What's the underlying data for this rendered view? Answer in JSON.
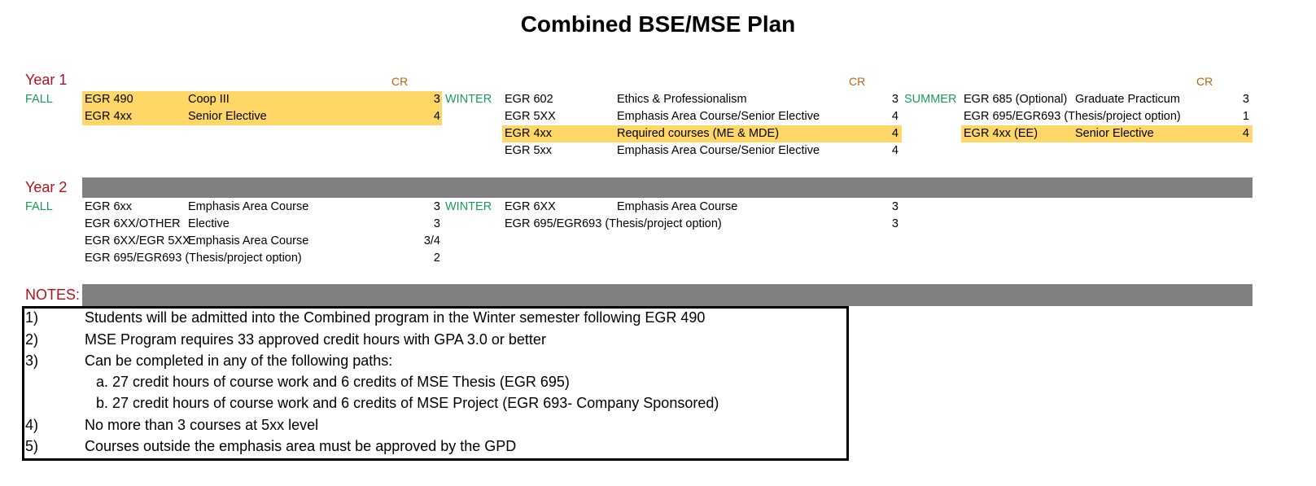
{
  "title": "Combined BSE/MSE Plan",
  "cr_header": "CR",
  "colors": {
    "highlight": "#ffd766",
    "bar": "#808080",
    "year": "#b0121b",
    "semester": "#1a9a5a",
    "cr": "#b8650f"
  },
  "year1": {
    "label": "Year 1",
    "fall": {
      "label": "FALL",
      "courses": [
        {
          "code": "EGR 490",
          "title": "Coop III",
          "cr": "3",
          "highlight": true
        },
        {
          "code": "EGR 4xx",
          "title": "Senior Elective",
          "cr": "4",
          "highlight": true
        }
      ]
    },
    "winter": {
      "label": "WINTER",
      "courses": [
        {
          "code": "EGR 602",
          "title": "Ethics & Professionalism",
          "cr": "3",
          "highlight": false
        },
        {
          "code": "EGR 5XX",
          "title": "Emphasis Area Course/Senior Elective",
          "cr": "4",
          "highlight": false
        },
        {
          "code": "EGR 4xx",
          "title": "Required courses (ME & MDE)",
          "cr": "4",
          "highlight": true
        },
        {
          "code": "EGR 5xx",
          "title": "Emphasis Area Course/Senior Elective",
          "cr": "4",
          "highlight": false
        }
      ]
    },
    "summer": {
      "label": "SUMMER",
      "courses": [
        {
          "code": "EGR 685 (Optional)",
          "title": "Graduate Practicum",
          "cr": "3",
          "highlight": false
        },
        {
          "code": "EGR 695/EGR693 (Thesis/project option)",
          "title": "",
          "cr": "1",
          "highlight": false
        },
        {
          "code": "EGR 4xx (EE)",
          "title": "Senior Elective",
          "cr": "4",
          "highlight": true
        }
      ]
    }
  },
  "year2": {
    "label": "Year 2",
    "fall": {
      "label": "FALL",
      "courses": [
        {
          "code": "EGR 6xx",
          "title": "Emphasis Area Course",
          "cr": "3",
          "highlight": false
        },
        {
          "code": "EGR 6XX/OTHER",
          "title": "Elective",
          "cr": "3",
          "highlight": false
        },
        {
          "code": "EGR 6XX/EGR 5XX",
          "title": "Emphasis Area Course",
          "cr": "3/4",
          "highlight": false
        },
        {
          "code": "EGR 695/EGR693 (Thesis/project option)",
          "title": "",
          "cr": "2",
          "highlight": false
        }
      ]
    },
    "winter": {
      "label": "WINTER",
      "courses": [
        {
          "code": "EGR 6XX",
          "title": "Emphasis Area Course",
          "cr": "3",
          "highlight": false
        },
        {
          "code": "EGR 695/EGR693 (Thesis/project option)",
          "title": "",
          "cr": "3",
          "highlight": false
        }
      ]
    }
  },
  "notes": {
    "label": "NOTES:",
    "items": [
      {
        "num": "1)",
        "text": "Students will be admitted into the Combined program in the Winter semester following EGR 490"
      },
      {
        "num": "2)",
        "text": "MSE Program requires 33 approved credit hours with GPA 3.0 or better"
      },
      {
        "num": "3)",
        "text": "Can be completed in any of the following paths:"
      },
      {
        "num": "",
        "text": "a. 27 credit hours of course work and 6 credits of MSE Thesis (EGR 695)",
        "sub": true
      },
      {
        "num": "",
        "text": "b. 27 credit hours of course work and 6 credits of MSE Project (EGR 693- Company Sponsored)",
        "sub": true
      },
      {
        "num": "4)",
        "text": "No more than 3 courses at 5xx level"
      },
      {
        "num": "5)",
        "text": "Courses outside the emphasis area must be approved by the GPD"
      }
    ]
  }
}
